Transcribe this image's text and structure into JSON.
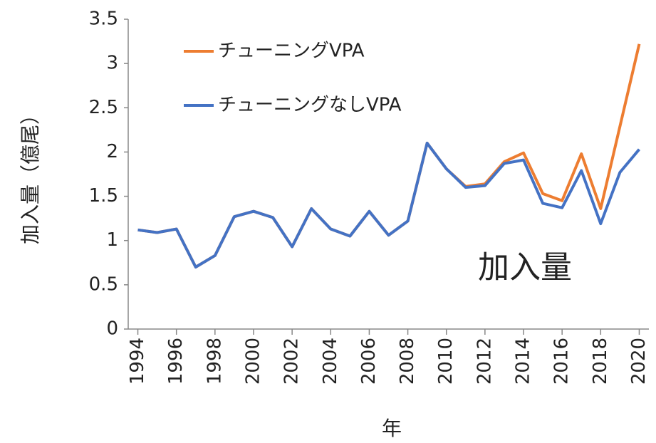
{
  "chart_data": {
    "type": "line",
    "x": [
      1994,
      1995,
      1996,
      1997,
      1998,
      1999,
      2000,
      2001,
      2002,
      2003,
      2004,
      2005,
      2006,
      2007,
      2008,
      2009,
      2010,
      2011,
      2012,
      2013,
      2014,
      2015,
      2016,
      2017,
      2018,
      2019,
      2020
    ],
    "series": [
      {
        "name": "チューニングVPA",
        "color": "#ed7d31",
        "values": [
          1.12,
          1.09,
          1.13,
          0.7,
          0.83,
          1.27,
          1.33,
          1.26,
          0.93,
          1.36,
          1.13,
          1.05,
          1.33,
          1.06,
          1.22,
          2.1,
          1.81,
          1.61,
          1.64,
          1.89,
          1.99,
          1.53,
          1.45,
          1.98,
          1.36,
          2.29,
          3.22
        ]
      },
      {
        "name": "チューニングなしVPA",
        "color": "#4472c4",
        "values": [
          1.12,
          1.09,
          1.13,
          0.7,
          0.83,
          1.27,
          1.33,
          1.26,
          0.93,
          1.36,
          1.13,
          1.05,
          1.33,
          1.06,
          1.22,
          2.1,
          1.81,
          1.6,
          1.62,
          1.87,
          1.91,
          1.42,
          1.37,
          1.79,
          1.19,
          1.77,
          2.03
        ]
      }
    ],
    "xlim": [
      1993.5,
      2020.5
    ],
    "xticks": [
      1994,
      1996,
      1998,
      2000,
      2002,
      2004,
      2006,
      2008,
      2010,
      2012,
      2014,
      2016,
      2018,
      2020
    ],
    "ylim": [
      0,
      3.5
    ],
    "yticks": [
      0,
      0.5,
      1,
      1.5,
      2,
      2.5,
      3,
      3.5
    ],
    "xlabel": "年",
    "ylabel": "加入量（億尾）",
    "annotation": "加入量",
    "grid": false
  }
}
